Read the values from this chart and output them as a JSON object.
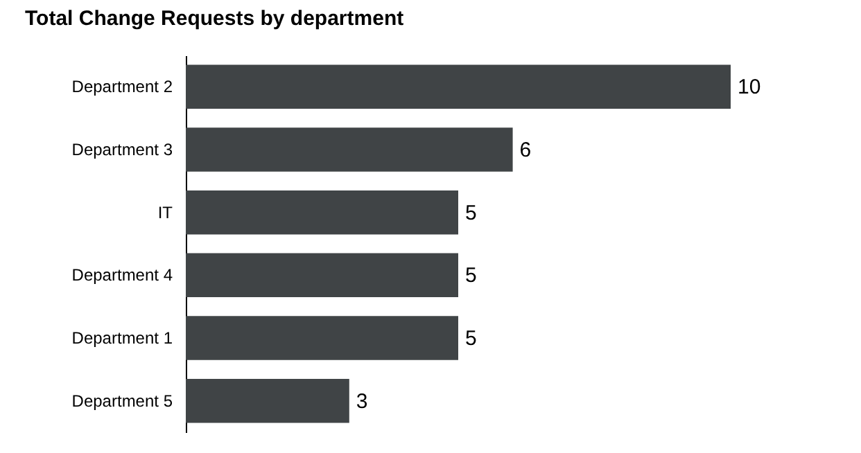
{
  "chart_data": {
    "type": "bar",
    "orientation": "horizontal",
    "title": "Total Change Requests by department",
    "categories": [
      "Department 2",
      "Department 3",
      "IT",
      "Department 4",
      "Department 1",
      "Department 5"
    ],
    "values": [
      10,
      6,
      5,
      5,
      5,
      3
    ],
    "color": "#404446",
    "data_labels": true
  }
}
